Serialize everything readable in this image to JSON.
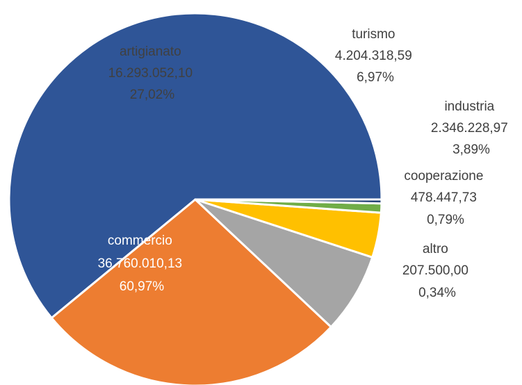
{
  "chart_data": {
    "type": "pie",
    "start": "3 o'clock, counter-clockwise",
    "slices": [
      {
        "name": "commercio",
        "value": "36.760.010,13",
        "value_num": 36760010.13,
        "percent": "60,97%",
        "color": "#2F5597",
        "label_color": "#ffffff"
      },
      {
        "name": "artigianato",
        "value": "16.293.052,10",
        "value_num": 16293052.1,
        "percent": "27,02%",
        "color": "#ED7D31",
        "label_color": "#404040"
      },
      {
        "name": "turismo",
        "value": "4.204.318,59",
        "value_num": 4204318.59,
        "percent": "6,97%",
        "color": "#A5A5A5",
        "label_color": "#404040"
      },
      {
        "name": "industria",
        "value": "2.346.228,97",
        "value_num": 2346228.97,
        "percent": "3,89%",
        "color": "#FFC000",
        "label_color": "#404040"
      },
      {
        "name": "cooperazione",
        "value": "478.447,73",
        "value_num": 478447.73,
        "percent": "0,79%",
        "color": "#70AD47",
        "label_color": "#404040"
      },
      {
        "name": "altro",
        "value": "207.500,00",
        "value_num": 207500.0,
        "percent": "0,34%",
        "color": "#264478",
        "label_color": "#404040"
      }
    ]
  }
}
